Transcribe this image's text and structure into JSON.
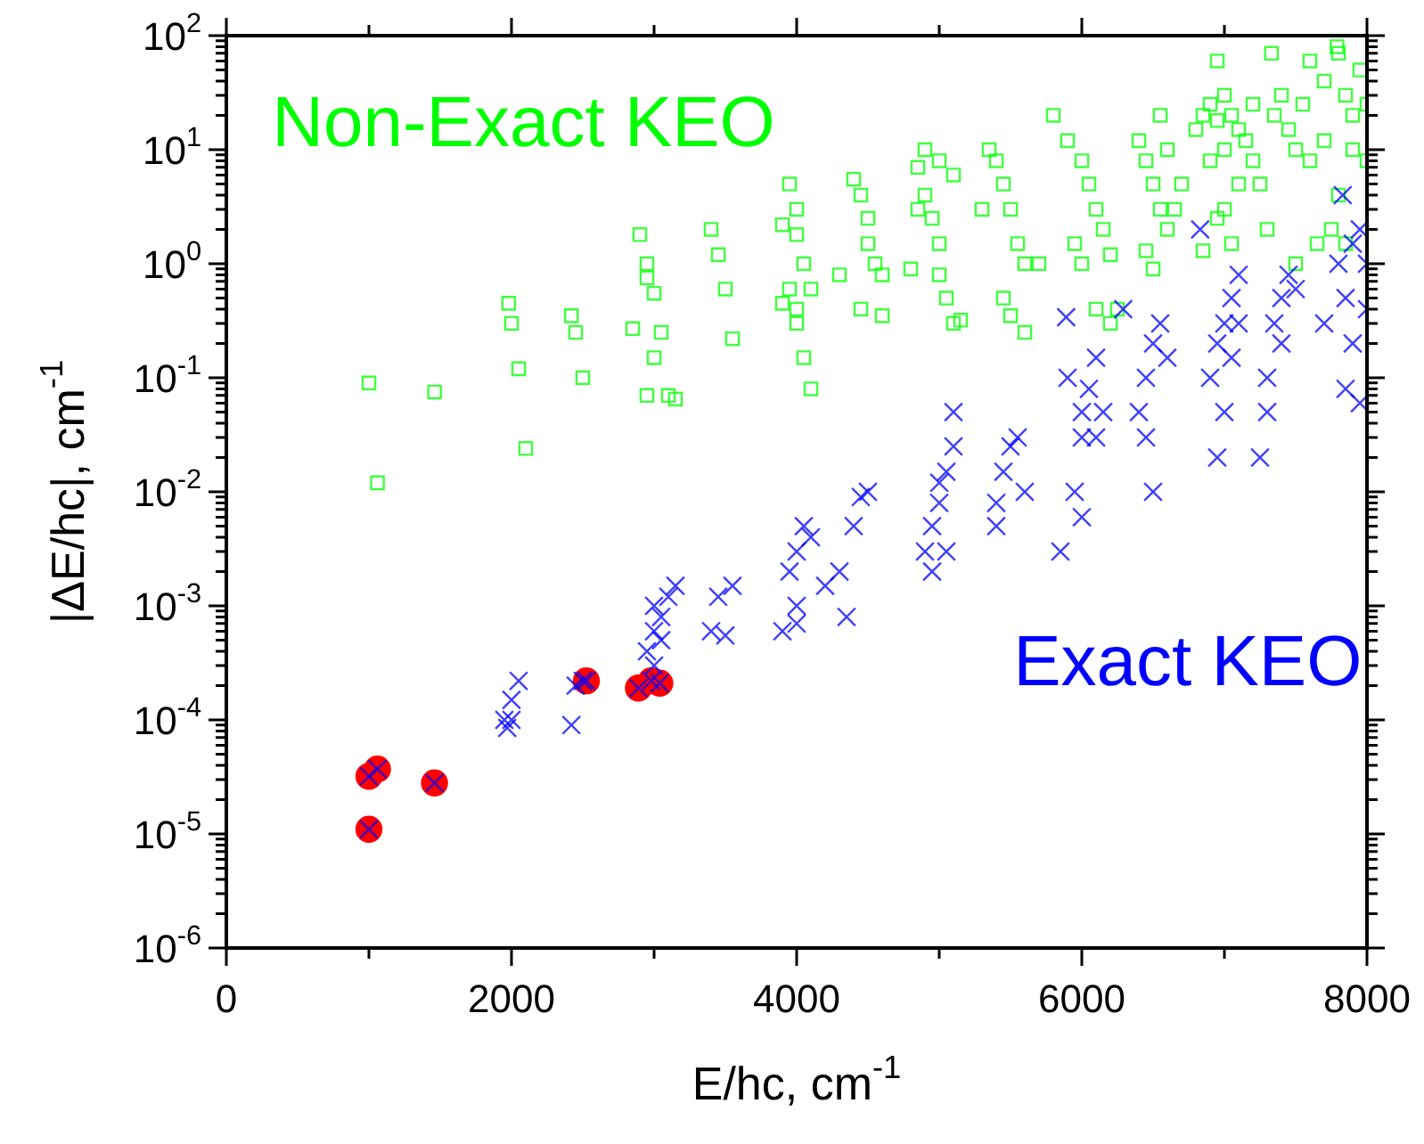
{
  "chart_data": {
    "type": "scatter",
    "xlabel": "E/hc, cm$^{-1}$",
    "ylabel": "|ΔE/hc|, cm$^{-1}$",
    "log": "y",
    "grid": false,
    "legend": false,
    "xlim": [
      0,
      8000
    ],
    "ylim": [
      1e-06,
      100
    ],
    "xticks": [
      0,
      {
        "value": 1000,
        "label": null
      },
      2000,
      {
        "value": 3000,
        "label": null
      },
      4000,
      {
        "value": 5000,
        "label": null
      },
      6000,
      {
        "value": 7000,
        "label": null
      },
      8000
    ],
    "yticks": [
      {
        "value": 1e-06,
        "label": "10$^{-6}$"
      },
      {
        "value": 2e-06,
        "label": null
      },
      {
        "value": 3e-06,
        "label": null
      },
      {
        "value": 4e-06,
        "label": null
      },
      {
        "value": 5e-06,
        "label": null
      },
      {
        "value": 6e-06,
        "label": null
      },
      {
        "value": 7e-06,
        "label": null
      },
      {
        "value": 8e-06,
        "label": null
      },
      {
        "value": 9e-06,
        "label": null
      },
      {
        "value": 1e-05,
        "label": "10$^{-5}$"
      },
      {
        "value": 2e-05,
        "label": null
      },
      {
        "value": 3e-05,
        "label": null
      },
      {
        "value": 4e-05,
        "label": null
      },
      {
        "value": 5e-05,
        "label": null
      },
      {
        "value": 6e-05,
        "label": null
      },
      {
        "value": 7e-05,
        "label": null
      },
      {
        "value": 8e-05,
        "label": null
      },
      {
        "value": 9e-05,
        "label": null
      },
      {
        "value": 0.0001,
        "label": "10$^{-4}$"
      },
      {
        "value": 0.0002,
        "label": null
      },
      {
        "value": 0.0003,
        "label": null
      },
      {
        "value": 0.0004,
        "label": null
      },
      {
        "value": 0.0005,
        "label": null
      },
      {
        "value": 0.0006,
        "label": null
      },
      {
        "value": 0.0007,
        "label": null
      },
      {
        "value": 0.0008,
        "label": null
      },
      {
        "value": 0.0009,
        "label": null
      },
      {
        "value": 0.001,
        "label": "10$^{-3}$"
      },
      {
        "value": 0.002,
        "label": null
      },
      {
        "value": 0.003,
        "label": null
      },
      {
        "value": 0.004,
        "label": null
      },
      {
        "value": 0.005,
        "label": null
      },
      {
        "value": 0.006,
        "label": null
      },
      {
        "value": 0.007,
        "label": null
      },
      {
        "value": 0.008,
        "label": null
      },
      {
        "value": 0.009,
        "label": null
      },
      {
        "value": 0.01,
        "label": "10$^{-2}$"
      },
      {
        "value": 0.02,
        "label": null
      },
      {
        "value": 0.03,
        "label": null
      },
      {
        "value": 0.04,
        "label": null
      },
      {
        "value": 0.05,
        "label": null
      },
      {
        "value": 0.06,
        "label": null
      },
      {
        "value": 0.07,
        "label": null
      },
      {
        "value": 0.08,
        "label": null
      },
      {
        "value": 0.09,
        "label": null
      },
      {
        "value": 0.1,
        "label": "10$^{-1}$"
      },
      {
        "value": 0.2,
        "label": null
      },
      {
        "value": 0.3,
        "label": null
      },
      {
        "value": 0.4,
        "label": null
      },
      {
        "value": 0.5,
        "label": null
      },
      {
        "value": 0.6,
        "label": null
      },
      {
        "value": 0.7,
        "label": null
      },
      {
        "value": 0.8,
        "label": null
      },
      {
        "value": 0.9,
        "label": null
      },
      {
        "value": 1,
        "label": "10$^{0}$"
      },
      {
        "value": 2,
        "label": null
      },
      {
        "value": 3,
        "label": null
      },
      {
        "value": 4,
        "label": null
      },
      {
        "value": 5,
        "label": null
      },
      {
        "value": 6,
        "label": null
      },
      {
        "value": 7,
        "label": null
      },
      {
        "value": 8,
        "label": null
      },
      {
        "value": 9,
        "label": null
      },
      {
        "value": 10,
        "label": "10$^{1}$"
      },
      {
        "value": 20,
        "label": null
      },
      {
        "value": 30,
        "label": null
      },
      {
        "value": 40,
        "label": null
      },
      {
        "value": 50,
        "label": null
      },
      {
        "value": 60,
        "label": null
      },
      {
        "value": 70,
        "label": null
      },
      {
        "value": 80,
        "label": null
      },
      {
        "value": 90,
        "label": null
      },
      {
        "value": 100,
        "label": "10$^{2}$"
      }
    ],
    "series": [
      {
        "name": "Non-Exact KEO",
        "color": "#00ff00",
        "marker": "square",
        "x": [
          1000,
          1060,
          1460,
          1980,
          2000,
          2050,
          2100,
          2420,
          2450,
          2500,
          2850,
          2900,
          2950,
          2950,
          3000,
          3000,
          3050,
          3100,
          2950,
          3400,
          3450,
          3500,
          3550,
          3150,
          3900,
          3950,
          4000,
          4000,
          4050,
          4100,
          4050,
          4100,
          3900,
          3950,
          4000,
          4000,
          4400,
          4450,
          4500,
          4500,
          4550,
          4600,
          4450,
          4600,
          4300,
          4850,
          4900,
          4950,
          5000,
          5000,
          5050,
          5100,
          5150,
          4900,
          5000,
          5100,
          4800,
          4850,
          5350,
          5400,
          5450,
          5500,
          5550,
          5600,
          5450,
          5500,
          5600,
          5300,
          5700,
          5800,
          5900,
          6000,
          6050,
          6100,
          6150,
          6200,
          6000,
          5950,
          6100,
          6200,
          6250,
          6400,
          6450,
          6500,
          6550,
          6600,
          6450,
          6500,
          6550,
          6600,
          6700,
          6650,
          6800,
          6850,
          6900,
          6950,
          7000,
          7050,
          7100,
          7150,
          7200,
          6900,
          7000,
          7100,
          7000,
          6850,
          6950,
          7050,
          7200,
          7250,
          7300,
          6950,
          7330,
          7790,
          7350,
          7400,
          7450,
          7500,
          7550,
          7600,
          7700,
          7800,
          7850,
          7900,
          7950,
          8000,
          7600,
          7700,
          7800,
          7900,
          8000,
          7750,
          7650,
          7850,
          7500
        ],
        "values": [
          0.09,
          0.012,
          0.075,
          0.45,
          0.3,
          0.12,
          0.024,
          0.35,
          0.25,
          0.1,
          0.27,
          1.8,
          1.0,
          0.75,
          0.55,
          0.15,
          0.25,
          0.07,
          0.07,
          2,
          1.2,
          0.6,
          0.22,
          0.065,
          2.2,
          5,
          3,
          1.8,
          1,
          0.6,
          0.15,
          0.08,
          0.45,
          0.6,
          0.4,
          0.3,
          5.5,
          4,
          2.5,
          1.5,
          1,
          0.8,
          0.4,
          0.35,
          0.8,
          7,
          4,
          2.5,
          1.5,
          0.8,
          0.5,
          0.3,
          0.32,
          10,
          8,
          6,
          0.9,
          3,
          10,
          8,
          5,
          3,
          1.5,
          1,
          0.5,
          0.35,
          0.25,
          3,
          1,
          20,
          12,
          8,
          5,
          3,
          2,
          1.2,
          1,
          1.5,
          0.4,
          0.3,
          0.4,
          12,
          8,
          5,
          3,
          2,
          1.3,
          0.9,
          20,
          10,
          5,
          3,
          15,
          20,
          25,
          18,
          30,
          20,
          15,
          12,
          25,
          8,
          10,
          5,
          3,
          1.3,
          2.5,
          1.5,
          8,
          5,
          2,
          60,
          70,
          80,
          20,
          30,
          15,
          10,
          25,
          60,
          40,
          70,
          30,
          20,
          50,
          25,
          8,
          12,
          4,
          10,
          8,
          2,
          1.5,
          1.5,
          1
        ]
      },
      {
        "color": "#ff0000",
        "marker": "circle",
        "x": [
          1000,
          1000,
          1060,
          1460,
          2525,
          2890,
          2980,
          3040
        ],
        "values": [
          1.1e-05,
          3.2e-05,
          3.7e-05,
          2.8e-05,
          0.00022,
          0.00019,
          0.00022,
          0.00021
        ]
      },
      {
        "name": "Exact KEO",
        "color": "#0000ff",
        "marker": "cross",
        "x": [
          1000,
          1000,
          1060,
          1460,
          2525,
          2890,
          2980,
          3040,
          1950,
          1970,
          2000,
          2050,
          2000,
          2420,
          2450,
          2500,
          2950,
          3000,
          3050,
          3000,
          3100,
          3150,
          3000,
          3050,
          3400,
          3450,
          3550,
          3500,
          3900,
          4000,
          3950,
          4000,
          4050,
          4100,
          4000,
          4300,
          4400,
          4450,
          4500,
          4350,
          4200,
          4900,
          4950,
          5000,
          5050,
          5100,
          5000,
          5100,
          4950,
          5050,
          5400,
          5450,
          5500,
          5550,
          5400,
          5600,
          5850,
          5950,
          6000,
          6000,
          6050,
          6100,
          6100,
          6000,
          5900,
          6150,
          6400,
          6450,
          6500,
          6550,
          6500,
          6600,
          6450,
          6900,
          6950,
          7000,
          7050,
          7100,
          7000,
          7050,
          6950,
          7100,
          7300,
          7350,
          7400,
          7450,
          7500,
          7400,
          7300,
          7250,
          7700,
          7800,
          7850,
          7900,
          7950,
          8000,
          7900,
          7950,
          8000,
          7850,
          5890,
          6290,
          6830,
          7830
        ],
        "values": [
          1.1e-05,
          3.2e-05,
          3.7e-05,
          2.8e-05,
          0.00022,
          0.00019,
          0.00022,
          0.00021,
          0.0001,
          8.5e-05,
          0.0001,
          0.00022,
          0.00015,
          9e-05,
          0.0002,
          0.00022,
          0.0004,
          0.0006,
          0.0008,
          0.001,
          0.0012,
          0.0015,
          0.0003,
          0.0005,
          0.0006,
          0.0012,
          0.0015,
          0.00055,
          0.0006,
          0.001,
          0.002,
          0.003,
          0.005,
          0.004,
          0.0007,
          0.002,
          0.005,
          0.009,
          0.01,
          0.0008,
          0.0015,
          0.003,
          0.005,
          0.008,
          0.015,
          0.025,
          0.012,
          0.05,
          0.002,
          0.003,
          0.008,
          0.015,
          0.025,
          0.03,
          0.005,
          0.01,
          0.003,
          0.01,
          0.03,
          0.05,
          0.08,
          0.15,
          0.03,
          0.006,
          0.1,
          0.05,
          0.05,
          0.1,
          0.2,
          0.3,
          0.01,
          0.15,
          0.03,
          0.1,
          0.2,
          0.3,
          0.5,
          0.3,
          0.05,
          0.15,
          0.02,
          0.8,
          0.1,
          0.3,
          0.5,
          0.8,
          0.6,
          0.2,
          0.05,
          0.02,
          0.3,
          1,
          0.5,
          1.5,
          2,
          1,
          0.2,
          0.06,
          0.4,
          0.08,
          0.34,
          0.4,
          2,
          4
        ]
      }
    ]
  }
}
